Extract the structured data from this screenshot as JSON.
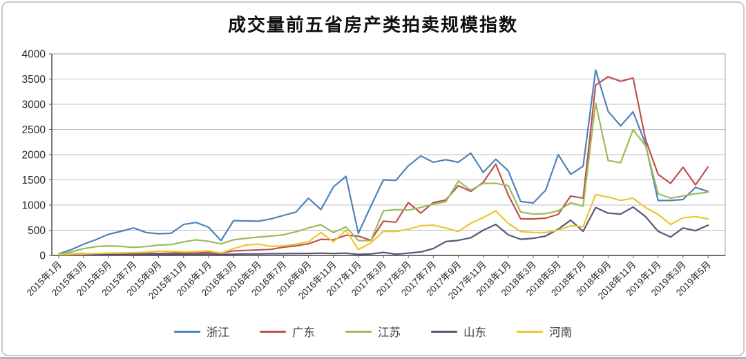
{
  "title": "成交量前五省房产类拍卖规模指数",
  "legend": {
    "items": [
      {
        "key": "zhejiang",
        "label": "浙江",
        "color": "#4F81BD"
      },
      {
        "key": "guangdong",
        "label": "广东",
        "color": "#C0504D"
      },
      {
        "key": "jiangsu",
        "label": "江苏",
        "color": "#9BBB59"
      },
      {
        "key": "shandong",
        "label": "山东",
        "color": "#5A5578"
      },
      {
        "key": "henan",
        "label": "河南",
        "color": "#EDC52F"
      }
    ]
  },
  "chart_data": {
    "type": "line",
    "title": "成交量前五省房产类拍卖规模指数",
    "x_start": "2015年1月",
    "x_end": "2019年5月",
    "x_interval": "monthly",
    "n_points": 53,
    "months_per_tick": 2,
    "x_tick_labels": [
      "2015年1月",
      "2015年3月",
      "2015年5月",
      "2015年7月",
      "2015年9月",
      "2015年11月",
      "2016年1月",
      "2016年3月",
      "2016年5月",
      "2016年7月",
      "2016年9月",
      "2016年11月",
      "2017年1月",
      "2017年3月",
      "2017年5月",
      "2017年7月",
      "2017年9月",
      "2017年11月",
      "2018年1月",
      "2018年3月",
      "2018年5月",
      "2018年7月",
      "2018年9月",
      "2018年11月",
      "2019年1月",
      "2019年3月",
      "2019年5月"
    ],
    "ylim": [
      0,
      4000
    ],
    "ytick_step": 500,
    "y_tick_labels": [
      "0",
      "500",
      "1000",
      "1500",
      "2000",
      "2500",
      "3000",
      "3500",
      "4000"
    ],
    "grid": "horizontal",
    "legend_position": "bottom",
    "series": [
      {
        "name": "浙江",
        "key": "zhejiang",
        "color": "#4F81BD",
        "values": [
          30,
          115,
          225,
          315,
          420,
          480,
          545,
          455,
          430,
          440,
          615,
          655,
          560,
          295,
          690,
          685,
          680,
          725,
          795,
          860,
          1135,
          910,
          1360,
          1570,
          440,
          980,
          1500,
          1490,
          1780,
          1975,
          1850,
          1900,
          1850,
          2030,
          1650,
          1910,
          1680,
          1070,
          1040,
          1295,
          2000,
          1610,
          1770,
          3680,
          2860,
          2570,
          2850,
          2210,
          1090,
          1090,
          1110,
          1350,
          1270
        ]
      },
      {
        "name": "广东",
        "key": "guangdong",
        "color": "#C0504D",
        "values": [
          10,
          30,
          35,
          30,
          35,
          30,
          35,
          45,
          40,
          45,
          50,
          55,
          60,
          50,
          90,
          100,
          110,
          120,
          165,
          190,
          230,
          320,
          310,
          400,
          385,
          300,
          680,
          660,
          1050,
          840,
          1050,
          1100,
          1385,
          1270,
          1450,
          1815,
          1200,
          725,
          725,
          740,
          815,
          1180,
          1135,
          3380,
          3545,
          3455,
          3520,
          2300,
          1610,
          1430,
          1750,
          1400,
          1755
        ]
      },
      {
        "name": "江苏",
        "key": "jiangsu",
        "color": "#9BBB59",
        "values": [
          25,
          70,
          135,
          175,
          190,
          180,
          160,
          175,
          205,
          215,
          270,
          310,
          280,
          230,
          310,
          340,
          365,
          385,
          410,
          470,
          545,
          610,
          455,
          565,
          295,
          295,
          885,
          910,
          900,
          950,
          1020,
          1065,
          1475,
          1295,
          1430,
          1430,
          1385,
          860,
          820,
          830,
          885,
          1045,
          980,
          3020,
          1885,
          1840,
          2495,
          2180,
          1225,
          1135,
          1180,
          1225,
          1255
        ]
      },
      {
        "name": "山东",
        "key": "shandong",
        "color": "#5A5578",
        "values": [
          5,
          10,
          10,
          15,
          15,
          15,
          20,
          20,
          25,
          20,
          25,
          25,
          25,
          20,
          25,
          30,
          30,
          35,
          35,
          40,
          40,
          45,
          40,
          45,
          20,
          30,
          60,
          25,
          45,
          70,
          135,
          275,
          300,
          350,
          500,
          615,
          410,
          320,
          340,
          385,
          520,
          700,
          480,
          950,
          840,
          820,
          960,
          770,
          480,
          365,
          545,
          490,
          600
        ]
      },
      {
        "name": "河南",
        "key": "henan",
        "color": "#EDC52F",
        "values": [
          15,
          25,
          30,
          40,
          45,
          50,
          55,
          65,
          85,
          80,
          70,
          75,
          90,
          45,
          135,
          205,
          225,
          180,
          190,
          225,
          270,
          455,
          270,
          500,
          115,
          250,
          475,
          475,
          520,
          590,
          600,
          545,
          475,
          640,
          750,
          885,
          635,
          475,
          455,
          455,
          500,
          590,
          570,
          1205,
          1160,
          1090,
          1135,
          950,
          815,
          615,
          750,
          770,
          725
        ]
      }
    ]
  }
}
